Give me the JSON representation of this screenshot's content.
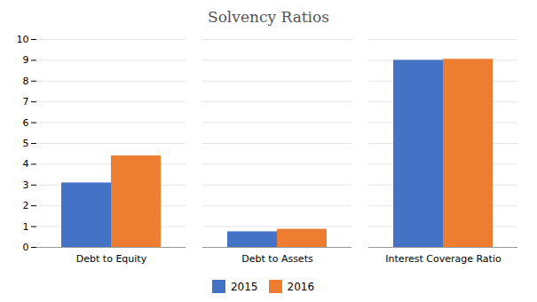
{
  "chart_data": {
    "type": "bar",
    "title": "Solvency Ratios",
    "categories": [
      "Debt to Equity",
      "Debt to Assets",
      "Interest Coverage Ratio"
    ],
    "series": [
      {
        "name": "2015",
        "color": "#4472C4",
        "values": [
          3.1,
          0.75,
          9.0
        ]
      },
      {
        "name": "2016",
        "color": "#ED7D31",
        "values": [
          4.4,
          0.87,
          9.05
        ]
      }
    ],
    "ylim": [
      0,
      10
    ],
    "yticks": [
      0,
      1,
      2,
      3,
      4,
      5,
      6,
      7,
      8,
      9,
      10
    ],
    "grid": true,
    "legend": "bottom"
  }
}
